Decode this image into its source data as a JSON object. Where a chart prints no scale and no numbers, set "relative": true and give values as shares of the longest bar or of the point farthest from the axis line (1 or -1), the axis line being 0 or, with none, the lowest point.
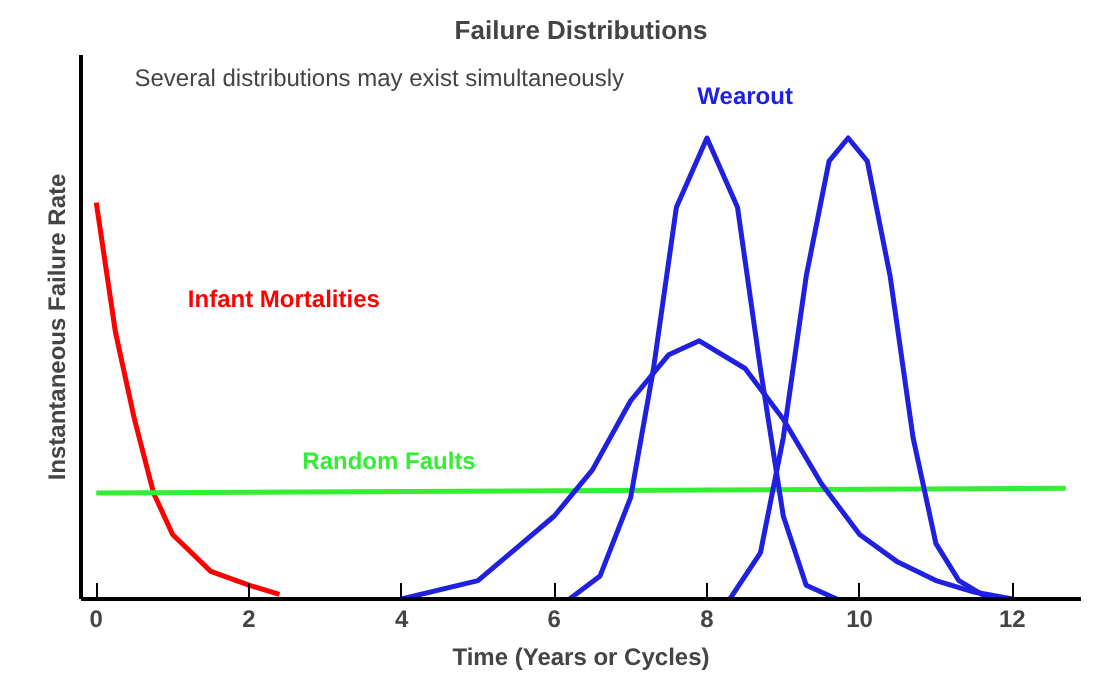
{
  "chart_data": {
    "type": "line",
    "title": "Failure Distributions",
    "xlabel": "Time (Years or Cycles)",
    "ylabel": "Instantaneous Failure Rate",
    "annotations": [
      "Several distributions may exist simultaneously"
    ],
    "relative": true,
    "xlim": [
      -0.2,
      12.9
    ],
    "xticks": [
      0,
      2,
      4,
      6,
      8,
      10,
      12
    ],
    "grid": false,
    "marker": "none",
    "line_style": "solid",
    "series": [
      {
        "name": "Infant Mortalities",
        "color": "#ff0000",
        "x": [
          0,
          0.25,
          0.5,
          0.75,
          1,
          1.5,
          2,
          2.4
        ],
        "values": [
          0.86,
          0.58,
          0.39,
          0.23,
          0.14,
          0.06,
          0.03,
          0.01
        ]
      },
      {
        "name": "Random Faults",
        "color": "#33ee33",
        "x": [
          0,
          12.7
        ],
        "values": [
          0.23,
          0.24
        ]
      },
      {
        "name": "Wearout",
        "color": "#2020e0",
        "x": [
          4,
          5,
          6,
          6.5,
          7,
          7.5,
          7.9,
          8.5,
          9,
          9.5,
          10,
          10.5,
          11,
          11.5,
          12
        ],
        "values": [
          0,
          0.04,
          0.18,
          0.28,
          0.43,
          0.53,
          0.56,
          0.5,
          0.39,
          0.25,
          0.14,
          0.08,
          0.04,
          0.015,
          0
        ]
      },
      {
        "color": "#2020e0",
        "x": [
          6.2,
          6.6,
          7,
          7.3,
          7.6,
          8,
          8.4,
          8.7,
          9,
          9.3,
          9.7
        ],
        "values": [
          0,
          0.05,
          0.22,
          0.5,
          0.85,
          1,
          0.85,
          0.5,
          0.18,
          0.03,
          0
        ]
      },
      {
        "color": "#2020e0",
        "x": [
          8.3,
          8.7,
          9,
          9.3,
          9.6,
          9.85,
          10.1,
          10.4,
          10.7,
          11,
          11.3,
          11.7
        ],
        "values": [
          0,
          0.1,
          0.35,
          0.7,
          0.95,
          1,
          0.95,
          0.7,
          0.35,
          0.12,
          0.04,
          0
        ]
      }
    ]
  }
}
